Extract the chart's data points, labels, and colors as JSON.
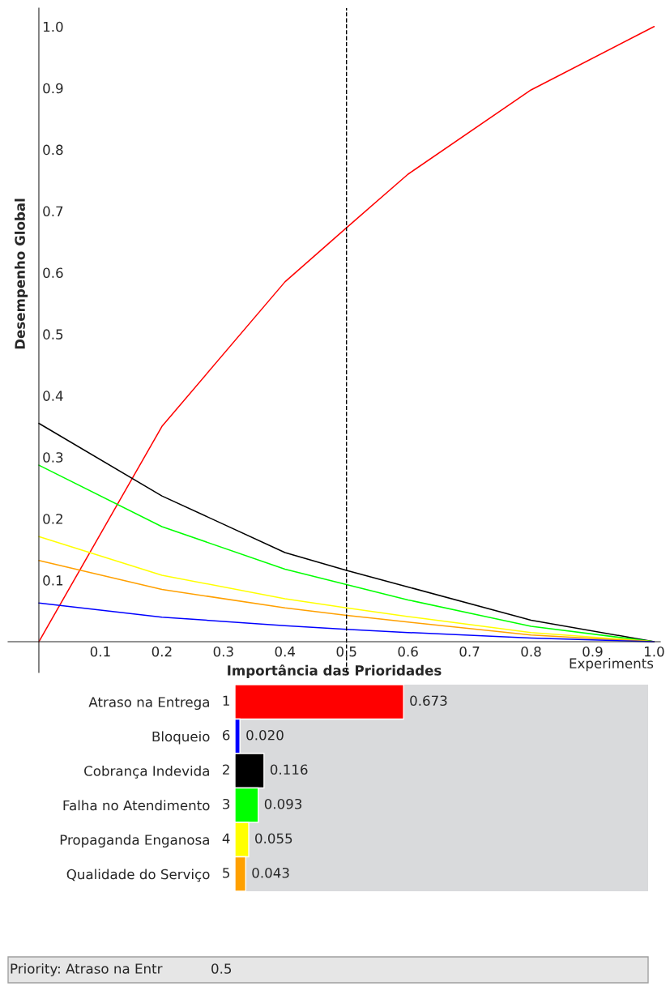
{
  "chart_data": [
    {
      "type": "line",
      "xlabel": "Importância das Prioridades",
      "ylabel": "Desempenho Global",
      "x": [
        0,
        0.2,
        0.4,
        0.5,
        0.6,
        0.8,
        1.0
      ],
      "series": [
        {
          "color": "#ff0000",
          "values": [
            0,
            0.35,
            0.585,
            0.673,
            0.76,
            0.897,
            1.0
          ]
        },
        {
          "color": "#000000",
          "values": [
            0.355,
            0.237,
            0.145,
            0.116,
            0.089,
            0.035,
            0
          ]
        },
        {
          "color": "#00ff00",
          "values": [
            0.287,
            0.187,
            0.118,
            0.093,
            0.068,
            0.025,
            0
          ]
        },
        {
          "color": "#ffff00",
          "values": [
            0.171,
            0.108,
            0.07,
            0.055,
            0.041,
            0.015,
            0
          ]
        },
        {
          "color": "#ffa000",
          "values": [
            0.132,
            0.085,
            0.055,
            0.043,
            0.032,
            0.011,
            0
          ]
        },
        {
          "color": "#0000ff",
          "values": [
            0.063,
            0.04,
            0.026,
            0.02,
            0.015,
            0.006,
            0
          ]
        }
      ],
      "xlim": [
        -0.05,
        1.01
      ],
      "ylim": [
        -0.05,
        1.03
      ],
      "xticks": [
        0.1,
        0.2,
        0.3,
        0.4,
        0.5,
        0.6,
        0.7,
        0.8,
        0.9,
        {
          "value": 1.0,
          "label": "1.0"
        }
      ],
      "yticks": [
        0.1,
        0.2,
        0.3,
        0.4,
        0.5,
        0.6,
        0.7,
        0.8,
        0.9,
        {
          "value": 1.0,
          "label": "1.0"
        }
      ],
      "ref_lines": [
        {
          "axis": "x",
          "value": 0.5,
          "color": "#000000",
          "line_style": "dashed"
        }
      ],
      "annotations": [
        "Experiments"
      ],
      "grid": false,
      "legend": false,
      "marker": "none",
      "line_style": "solid"
    },
    {
      "type": "bar",
      "orientation": "horizontal",
      "categories": [
        "Atraso na Entrega",
        "Bloqueio",
        "Cobrança Indevida",
        "Falha no Atendimento",
        "Propaganda Enganosa",
        "Qualidade do Serviço"
      ],
      "values": [
        0.673,
        0.02,
        0.116,
        0.093,
        0.055,
        0.043
      ],
      "colors": [
        "#ff0000",
        "#0000ff",
        "#000000",
        "#00ff00",
        "#ffff00",
        "#ffa000"
      ],
      "tick_labels": "y",
      "value_labels": [
        "0.673",
        "0.020",
        "0.116",
        "0.093",
        "0.055",
        "0.043"
      ],
      "annotations": [
        "1",
        "6",
        "2",
        "3",
        "4",
        "5",
        "Priority: Atraso na Entr",
        "0.5"
      ]
    }
  ]
}
